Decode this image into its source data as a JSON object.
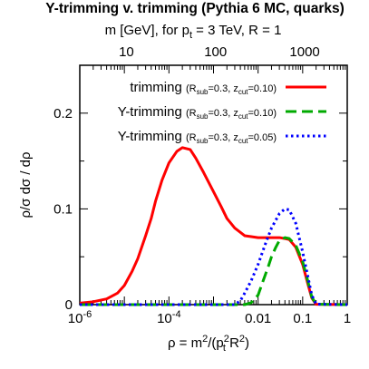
{
  "chart_data": {
    "type": "line",
    "title": "Y-trimming v. trimming (Pythia 6 MC, quarks)",
    "top_axis": {
      "label": {
        "pre": "m [GeV], for p",
        "sub": "t",
        "post": " = 3 TeV, R = 1"
      },
      "tick_values_gev": [
        10,
        100,
        1000
      ],
      "tick_labels": [
        "10",
        "100",
        "1000"
      ]
    },
    "xlabel": {
      "pre": "ρ = m",
      "sup1": "2",
      "mid": "/(p",
      "sub": "t",
      "sup2": "2",
      "post": " R",
      "sup3": "2",
      "end": ")"
    },
    "ylabel": "ρ/σ dσ / dρ",
    "x_scale": "log",
    "xlim": [
      1e-06,
      1
    ],
    "ylim": [
      0,
      0.25
    ],
    "x_ticks": [
      1e-06,
      0.0001,
      0.01,
      0.1,
      1
    ],
    "x_tick_labels": [
      {
        "base": "10",
        "sup": "-6"
      },
      {
        "base": "10",
        "sup": "-4"
      },
      {
        "base": "0.01",
        "sup": ""
      },
      {
        "base": "0.1",
        "sup": ""
      },
      {
        "base": "1",
        "sup": ""
      }
    ],
    "y_ticks": [
      0,
      0.1,
      0.2
    ],
    "y_tick_labels": [
      "0",
      "0.1",
      "0.2"
    ],
    "grid": false,
    "legend_position": "top-right",
    "series": [
      {
        "legend": {
          "name": "trimming",
          "params": {
            "a": "(R",
            "b": "sub",
            "c": "=0.3, z",
            "d": "cut",
            "e": "=0.10)"
          }
        },
        "color": "#ff0000",
        "style": "solid",
        "points": [
          [
            1e-06,
            0.0015
          ],
          [
            2e-06,
            0.003
          ],
          [
            4e-06,
            0.006
          ],
          [
            7e-06,
            0.012
          ],
          [
            1e-05,
            0.02
          ],
          [
            1.5e-05,
            0.035
          ],
          [
            2e-05,
            0.048
          ],
          [
            3e-05,
            0.072
          ],
          [
            4e-05,
            0.09
          ],
          [
            5e-05,
            0.108
          ],
          [
            7e-05,
            0.13
          ],
          [
            0.0001,
            0.148
          ],
          [
            0.00015,
            0.16
          ],
          [
            0.0002,
            0.164
          ],
          [
            0.0003,
            0.162
          ],
          [
            0.0004,
            0.153
          ],
          [
            0.0006,
            0.138
          ],
          [
            0.001,
            0.118
          ],
          [
            0.0015,
            0.102
          ],
          [
            0.002,
            0.09
          ],
          [
            0.003,
            0.08
          ],
          [
            0.005,
            0.072
          ],
          [
            0.007,
            0.071
          ],
          [
            0.01,
            0.07
          ],
          [
            0.015,
            0.07
          ],
          [
            0.02,
            0.07
          ],
          [
            0.03,
            0.07
          ],
          [
            0.04,
            0.069
          ],
          [
            0.05,
            0.068
          ],
          [
            0.07,
            0.06
          ],
          [
            0.1,
            0.042
          ],
          [
            0.13,
            0.022
          ],
          [
            0.16,
            0.007
          ],
          [
            0.2,
            0.0003
          ],
          [
            1,
            0
          ]
        ]
      },
      {
        "legend": {
          "name": "Y-trimming",
          "params": {
            "a": "(R",
            "b": "sub",
            "c": "=0.3, z",
            "d": "cut",
            "e": "=0.10)"
          }
        },
        "color": "#00aa00",
        "style": "dashed",
        "points": [
          [
            1e-06,
            0
          ],
          [
            0.005,
            0
          ],
          [
            0.007,
            0.002
          ],
          [
            0.01,
            0.01
          ],
          [
            0.013,
            0.025
          ],
          [
            0.017,
            0.04
          ],
          [
            0.02,
            0.05
          ],
          [
            0.025,
            0.06
          ],
          [
            0.03,
            0.067
          ],
          [
            0.04,
            0.07
          ],
          [
            0.05,
            0.069
          ],
          [
            0.07,
            0.062
          ],
          [
            0.1,
            0.045
          ],
          [
            0.13,
            0.025
          ],
          [
            0.16,
            0.008
          ],
          [
            0.2,
            0.0004
          ],
          [
            1,
            0
          ]
        ]
      },
      {
        "legend": {
          "name": "Y-trimming",
          "params": {
            "a": "(R",
            "b": "sub",
            "c": "=0.3, z",
            "d": "cut",
            "e": "=0.05)"
          }
        },
        "color": "#0000ff",
        "style": "dotted",
        "points": [
          [
            1e-06,
            0
          ],
          [
            0.003,
            0
          ],
          [
            0.004,
            0.004
          ],
          [
            0.005,
            0.012
          ],
          [
            0.007,
            0.025
          ],
          [
            0.01,
            0.042
          ],
          [
            0.015,
            0.065
          ],
          [
            0.02,
            0.08
          ],
          [
            0.03,
            0.095
          ],
          [
            0.04,
            0.1
          ],
          [
            0.05,
            0.099
          ],
          [
            0.07,
            0.085
          ],
          [
            0.1,
            0.055
          ],
          [
            0.13,
            0.03
          ],
          [
            0.16,
            0.01
          ],
          [
            0.2,
            0.0005
          ],
          [
            1,
            0
          ]
        ]
      }
    ]
  }
}
